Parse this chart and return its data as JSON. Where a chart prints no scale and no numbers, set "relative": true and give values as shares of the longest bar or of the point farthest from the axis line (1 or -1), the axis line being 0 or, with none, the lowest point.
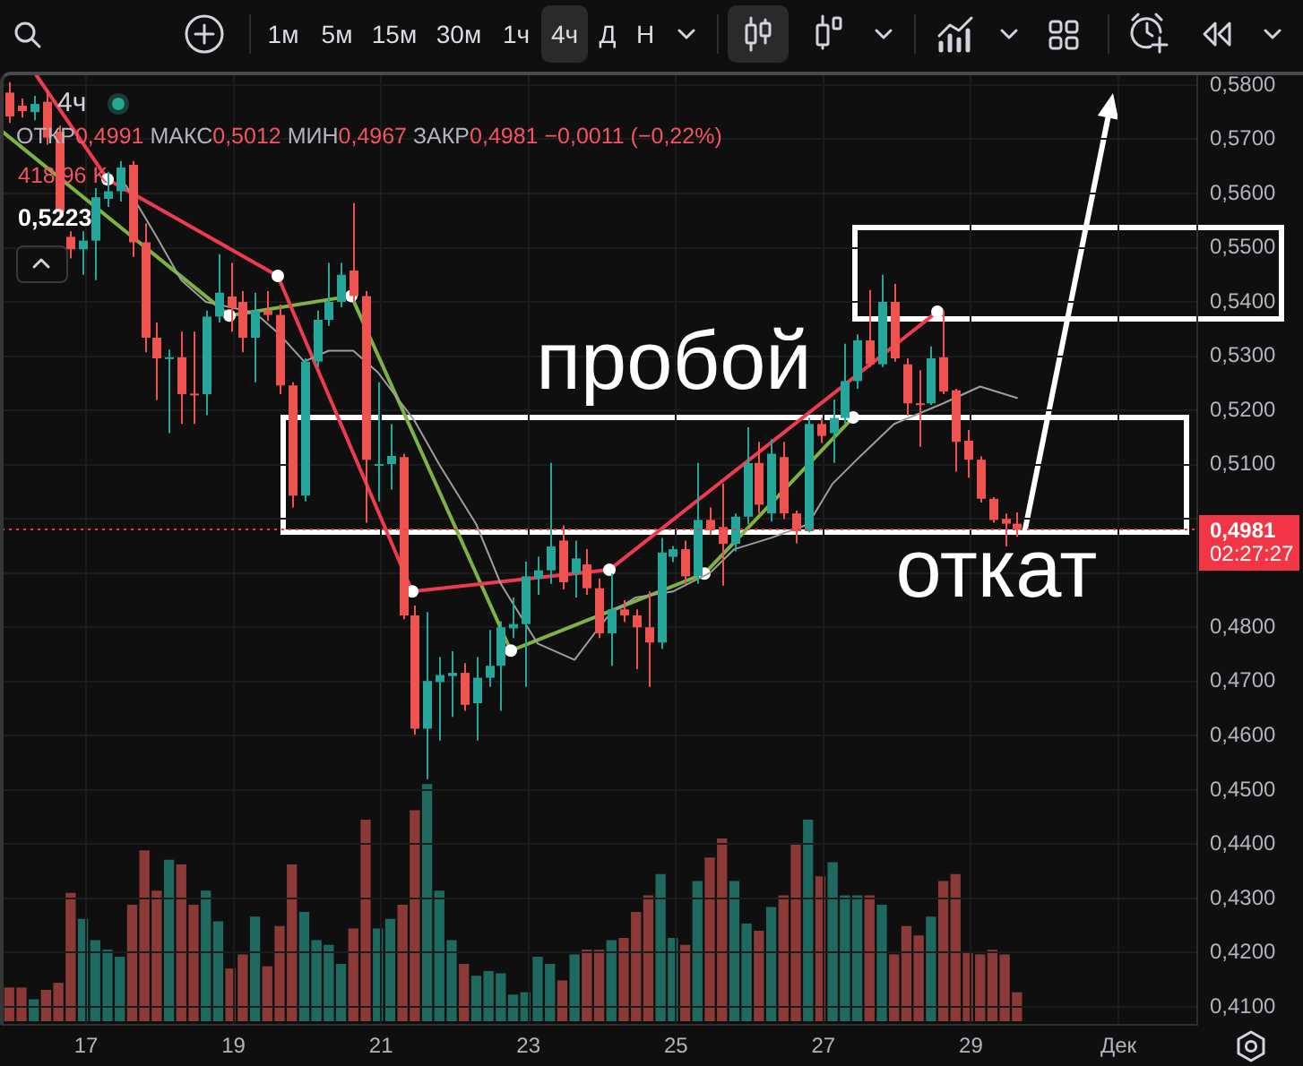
{
  "chart_data": [
    {
      "type": "candlestick",
      "title": "4ч",
      "subtitle": "ОТКР0,4991 МАКС0,5012 МИН0,4967 ЗАКР0,4981 −0,0011 (−0,22%)",
      "x": [
        "--11-15T23:00",
        "--11-16T03:00",
        "--11-16T07:00",
        "--11-16T11:00",
        "--11-16T15:00",
        "--11-16T19:00",
        "--11-16T23:00",
        "--11-17T03:00",
        "--11-17T07:00",
        "--11-17T11:00",
        "--11-17T15:00",
        "--11-17T19:00",
        "--11-17T23:00",
        "--11-18T03:00",
        "--11-18T07:00",
        "--11-18T11:00",
        "--11-18T15:00",
        "--11-18T19:00",
        "--11-18T23:00",
        "--11-19T03:00",
        "--11-19T07:00",
        "--11-19T11:00",
        "--11-19T15:00",
        "--11-19T19:00",
        "--11-19T23:00",
        "--11-20T03:00",
        "--11-20T07:00",
        "--11-20T11:00",
        "--11-20T15:00",
        "--11-20T19:00",
        "--11-20T23:00",
        "--11-21T03:00",
        "--11-21T07:00",
        "--11-21T11:00",
        "--11-21T15:00",
        "--11-21T19:00",
        "--11-21T23:00",
        "--11-22T03:00",
        "--11-22T07:00",
        "--11-22T11:00",
        "--11-22T15:00",
        "--11-22T19:00",
        "--11-22T23:00",
        "--11-23T03:00",
        "--11-23T07:00",
        "--11-23T11:00",
        "--11-23T15:00",
        "--11-23T19:00",
        "--11-23T23:00",
        "--11-24T03:00",
        "--11-24T07:00",
        "--11-24T11:00",
        "--11-24T15:00",
        "--11-24T19:00",
        "--11-24T23:00",
        "--11-25T03:00",
        "--11-25T07:00",
        "--11-25T11:00",
        "--11-25T15:00",
        "--11-25T19:00",
        "--11-25T23:00",
        "--11-26T03:00",
        "--11-26T07:00",
        "--11-26T11:00",
        "--11-26T15:00",
        "--11-26T19:00",
        "--11-26T23:00",
        "--11-27T03:00",
        "--11-27T07:00",
        "--11-27T11:00",
        "--11-27T15:00",
        "--11-27T19:00",
        "--11-27T23:00",
        "--11-28T03:00",
        "--11-28T07:00",
        "--11-28T11:00",
        "--11-28T15:00",
        "--11-28T19:00",
        "--11-28T23:00",
        "--11-29T03:00",
        "--11-29T07:00",
        "--11-29T11:00",
        "--11-29T15:00"
      ],
      "ohlc": [
        [
          0.5786,
          0.5805,
          0.573,
          0.5742
        ],
        [
          0.5762,
          0.5775,
          0.574,
          0.5752
        ],
        [
          0.575,
          0.578,
          0.5735,
          0.5765
        ],
        [
          0.5769,
          0.579,
          0.569,
          0.5703
        ],
        [
          0.5714,
          0.5725,
          0.555,
          0.5566
        ],
        [
          0.552,
          0.553,
          0.548,
          0.5497
        ],
        [
          0.5497,
          0.553,
          0.545,
          0.5513
        ],
        [
          0.5513,
          0.561,
          0.544,
          0.5593
        ],
        [
          0.559,
          0.564,
          0.5575,
          0.5604
        ],
        [
          0.5604,
          0.566,
          0.5585,
          0.5648
        ],
        [
          0.5653,
          0.566,
          0.5483,
          0.551
        ],
        [
          0.551,
          0.5545,
          0.5307,
          0.5334
        ],
        [
          0.5334,
          0.5362,
          0.5219,
          0.5296
        ],
        [
          0.5296,
          0.5312,
          0.5158,
          0.5298
        ],
        [
          0.5298,
          0.5345,
          0.5175,
          0.523
        ],
        [
          0.5231,
          0.5345,
          0.5175,
          0.523
        ],
        [
          0.523,
          0.5384,
          0.5191,
          0.5373
        ],
        [
          0.5373,
          0.5488,
          0.5362,
          0.5417
        ],
        [
          0.541,
          0.5472,
          0.5345,
          0.5389
        ],
        [
          0.54,
          0.542,
          0.5307,
          0.5334
        ],
        [
          0.5334,
          0.5417,
          0.5252,
          0.5384
        ],
        [
          0.5384,
          0.542,
          0.5365,
          0.5376
        ],
        [
          0.5376,
          0.5395,
          0.523,
          0.5246
        ],
        [
          0.5246,
          0.5252,
          0.5021,
          0.5043
        ],
        [
          0.5043,
          0.5296,
          0.5032,
          0.529
        ],
        [
          0.529,
          0.5384,
          0.528,
          0.5367
        ],
        [
          0.5367,
          0.5472,
          0.5356,
          0.54
        ],
        [
          0.54,
          0.5472,
          0.539,
          0.545
        ],
        [
          0.5458,
          0.5582,
          0.54,
          0.5411
        ],
        [
          0.5411,
          0.542,
          0.4993,
          0.5109
        ],
        [
          0.5098,
          0.5252,
          0.5032,
          0.5101
        ],
        [
          0.5101,
          0.5175,
          0.5054,
          0.5116
        ],
        [
          0.5114,
          0.512,
          0.4815,
          0.4822
        ],
        [
          0.4822,
          0.484,
          0.4602,
          0.4613
        ],
        [
          0.4613,
          0.4828,
          0.452,
          0.4701
        ],
        [
          0.4699,
          0.4745,
          0.4591,
          0.4712
        ],
        [
          0.471,
          0.4756,
          0.4635,
          0.4716
        ],
        [
          0.4716,
          0.4734,
          0.4646,
          0.4657
        ],
        [
          0.466,
          0.4745,
          0.4591,
          0.4707
        ],
        [
          0.4707,
          0.4795,
          0.469,
          0.4729
        ],
        [
          0.4729,
          0.4811,
          0.4646,
          0.48
        ],
        [
          0.4798,
          0.4855,
          0.478,
          0.4806
        ],
        [
          0.4806,
          0.4921,
          0.469,
          0.4894
        ],
        [
          0.489,
          0.493,
          0.486,
          0.4905
        ],
        [
          0.4905,
          0.5103,
          0.488,
          0.4949
        ],
        [
          0.496,
          0.4988,
          0.487,
          0.4883
        ],
        [
          0.4899,
          0.496,
          0.4855,
          0.4927
        ],
        [
          0.4916,
          0.4944,
          0.486,
          0.4872
        ],
        [
          0.4872,
          0.489,
          0.478,
          0.4789
        ],
        [
          0.4789,
          0.4899,
          0.4729,
          0.4833
        ],
        [
          0.4833,
          0.485,
          0.481,
          0.4822
        ],
        [
          0.4822,
          0.4833,
          0.4723,
          0.48
        ],
        [
          0.48,
          0.4866,
          0.469,
          0.4772
        ],
        [
          0.4772,
          0.4965,
          0.476,
          0.4938
        ],
        [
          0.493,
          0.495,
          0.492,
          0.4944
        ],
        [
          0.4944,
          0.496,
          0.488,
          0.4894
        ],
        [
          0.4894,
          0.5103,
          0.488,
          0.4998
        ],
        [
          0.4998,
          0.5021,
          0.497,
          0.4979
        ],
        [
          0.4985,
          0.5065,
          0.4877,
          0.4954
        ],
        [
          0.4954,
          0.501,
          0.494,
          0.5004
        ],
        [
          0.5004,
          0.5169,
          0.499,
          0.5103
        ],
        [
          0.5103,
          0.5142,
          0.501,
          0.5026
        ],
        [
          0.501,
          0.5147,
          0.4995,
          0.512
        ],
        [
          0.5114,
          0.5142,
          0.5,
          0.501
        ],
        [
          0.501,
          0.5015,
          0.4955,
          0.4977
        ],
        [
          0.4977,
          0.5186,
          0.4975,
          0.5175
        ],
        [
          0.5175,
          0.5186,
          0.514,
          0.5153
        ],
        [
          0.5158,
          0.522,
          0.5103,
          0.5186
        ],
        [
          0.5186,
          0.5323,
          0.5175,
          0.5254
        ],
        [
          0.5254,
          0.534,
          0.524,
          0.5329
        ],
        [
          0.5329,
          0.5422,
          0.528,
          0.5285
        ],
        [
          0.5285,
          0.545,
          0.528,
          0.54
        ],
        [
          0.54,
          0.5433,
          0.529,
          0.5296
        ],
        [
          0.5285,
          0.5296,
          0.519,
          0.5213
        ],
        [
          0.5213,
          0.5274,
          0.5133,
          0.5212
        ],
        [
          0.5213,
          0.5318,
          0.521,
          0.5296
        ],
        [
          0.5298,
          0.5384,
          0.523,
          0.5235
        ],
        [
          0.5237,
          0.524,
          0.5087,
          0.5142
        ],
        [
          0.5144,
          0.5164,
          0.5076,
          0.5109
        ],
        [
          0.5109,
          0.5115,
          0.503,
          0.5037
        ],
        [
          0.5037,
          0.504,
          0.4993,
          0.4998
        ],
        [
          0.5,
          0.501,
          0.4949,
          0.4991
        ],
        [
          0.4991,
          0.5012,
          0.4967,
          0.4981
        ]
      ],
      "colors": [
        "#ef5350",
        "#ef5350",
        "#26a69a",
        "#ef5350",
        "#ef5350",
        "#ef5350",
        "#26a69a",
        "#26a69a",
        "#26a69a",
        "#26a69a",
        "#ef5350",
        "#ef5350",
        "#ef5350",
        "#26a69a",
        "#ef5350",
        "#ef5350",
        "#26a69a",
        "#26a69a",
        "#ef5350",
        "#ef5350",
        "#26a69a",
        "#ef5350",
        "#ef5350",
        "#ef5350",
        "#26a69a",
        "#26a69a",
        "#26a69a",
        "#26a69a",
        "#ef5350",
        "#ef5350",
        "#26a69a",
        "#26a69a",
        "#ef5350",
        "#ef5350",
        "#26a69a",
        "#26a69a",
        "#26a69a",
        "#ef5350",
        "#26a69a",
        "#26a69a",
        "#26a69a",
        "#26a69a",
        "#26a69a",
        "#26a69a",
        "#26a69a",
        "#ef5350",
        "#26a69a",
        "#ef5350",
        "#ef5350",
        "#26a69a",
        "#ef5350",
        "#ef5350",
        "#ef5350",
        "#26a69a",
        "#26a69a",
        "#ef5350",
        "#26a69a",
        "#ef5350",
        "#ef5350",
        "#26a69a",
        "#26a69a",
        "#ef5350",
        "#26a69a",
        "#ef5350",
        "#ef5350",
        "#26a69a",
        "#ef5350",
        "#26a69a",
        "#26a69a",
        "#26a69a",
        "#ef5350",
        "#26a69a",
        "#ef5350",
        "#ef5350",
        "#ef5350",
        "#26a69a",
        "#ef5350",
        "#ef5350",
        "#ef5350",
        "#ef5350",
        "#ef5350",
        "#ef5350",
        "#ef5350"
      ],
      "series": [
        {
          "type": "line",
          "color": "#9e9e9e",
          "x": [
            "--11-17T13:00",
            "--11-17T23:00",
            "--11-18T07:00",
            "--11-18T15:00",
            "--11-18T23:00",
            "--11-19T07:00",
            "--11-19T15:00",
            "--11-19T23:00",
            "--11-20T07:00",
            "--11-20T15:00",
            "--11-20T23:00",
            "--11-21T11:00",
            "--11-21T19:00",
            "--11-22T07:00",
            "--11-22T15:00",
            "--11-23T03:00",
            "--11-23T15:00",
            "--11-23T23:00",
            "--11-24T03:00",
            "--11-24T11:00",
            "--11-24T23:00",
            "--11-25T11:00",
            "--11-25T19:00",
            "--11-26T07:00",
            "--11-26T19:00",
            "--11-27T03:00",
            "--11-27T11:00",
            "--11-27T23:00",
            "--11-28T15:00",
            "--11-29T03:00",
            "--11-29T15:00"
          ],
          "values": [
            0.5615,
            0.552,
            0.544,
            0.54,
            0.539,
            0.538,
            0.534,
            0.529,
            0.531,
            0.531,
            0.527,
            0.518,
            0.51,
            0.499,
            0.488,
            0.477,
            0.474,
            0.48,
            0.4828,
            0.4855,
            0.4866,
            0.49,
            0.4944,
            0.4965,
            0.499,
            0.5065,
            0.511,
            0.5175,
            0.5213,
            0.5244,
            0.5223
          ]
        },
        {
          "type": "line",
          "color": "#ef3b4f",
          "marker": "circle",
          "x": [
            "--11-16T07:50",
            "--11-17T07:00",
            "--11-19T14:25",
            "--11-21T10:10",
            "--11-24T02:20",
            "--11-28T13:05"
          ],
          "values": [
            0.5818,
            0.5626,
            0.5448,
            0.4866,
            0.4906,
            0.5382
          ]
        },
        {
          "type": "line",
          "color": "#7cb342",
          "marker": "circle",
          "x": [
            "--11-15T20:35",
            "--11-18T22:40",
            "--11-20T14:20",
            "--11-22T18:15",
            "--11-25T09:15",
            "--11-27T09:40"
          ],
          "values": [
            0.5715,
            0.5375,
            0.5411,
            0.4757,
            0.4899,
            0.5187
          ]
        }
      ],
      "xlim": [
        "--11-15T20:35",
        "--12-02T01:40"
      ],
      "xticks": [
        {
          "value": "--11-17",
          "label": "17"
        },
        {
          "value": "--11-19",
          "label": "19"
        },
        {
          "value": "--11-21",
          "label": "21"
        },
        {
          "value": "--11-23",
          "label": "23"
        },
        {
          "value": "--11-25",
          "label": "25"
        },
        {
          "value": "--11-27",
          "label": "27"
        },
        {
          "value": "--11-29",
          "label": "29"
        },
        {
          "value": "--12-01",
          "label": "Дек"
        }
      ],
      "ylim": [
        0.4067,
        0.5818
      ],
      "yticks": [
        {
          "value": 0.41,
          "label": "0,4100"
        },
        {
          "value": 0.42,
          "label": "0,4200"
        },
        {
          "value": 0.43,
          "label": "0,4300"
        },
        {
          "value": 0.44,
          "label": "0,4400"
        },
        {
          "value": 0.45,
          "label": "0,4500"
        },
        {
          "value": 0.46,
          "label": "0,4600"
        },
        {
          "value": 0.47,
          "label": "0,4700"
        },
        {
          "value": 0.48,
          "label": "0,4800"
        },
        {
          "value": 0.49,
          "label": null
        },
        {
          "value": 0.5,
          "label": null
        },
        {
          "value": 0.51,
          "label": "0,5100"
        },
        {
          "value": 0.52,
          "label": "0,5200"
        },
        {
          "value": 0.53,
          "label": "0,5300"
        },
        {
          "value": 0.54,
          "label": "0,5400"
        },
        {
          "value": 0.55,
          "label": "0,5500"
        },
        {
          "value": 0.56,
          "label": "0,5600"
        },
        {
          "value": 0.57,
          "label": "0,5700"
        },
        {
          "value": 0.58,
          "label": "0,5800"
        }
      ],
      "grid": true,
      "ref_lines": [
        {
          "axis": "y",
          "value": 0.4981,
          "label": "0,4981",
          "color": "#f23645",
          "line_style": "dotted"
        }
      ],
      "annotations": [
        "1м",
        "5м",
        "15м",
        "30м",
        "1ч",
        "4ч",
        "Д",
        "Н",
        "02:27:27",
        "0,5223",
        "пробой",
        "откат"
      ]
    },
    {
      "type": "bar",
      "relative": true,
      "x": [
        "--11-15T23:00",
        "--11-16T03:00",
        "--11-16T07:00",
        "--11-16T11:00",
        "--11-16T15:00",
        "--11-16T19:00",
        "--11-16T23:00",
        "--11-17T03:00",
        "--11-17T07:00",
        "--11-17T11:00",
        "--11-17T15:00",
        "--11-17T19:00",
        "--11-17T23:00",
        "--11-18T03:00",
        "--11-18T07:00",
        "--11-18T11:00",
        "--11-18T15:00",
        "--11-18T19:00",
        "--11-18T23:00",
        "--11-19T03:00",
        "--11-19T07:00",
        "--11-19T11:00",
        "--11-19T15:00",
        "--11-19T19:00",
        "--11-19T23:00",
        "--11-20T03:00",
        "--11-20T07:00",
        "--11-20T11:00",
        "--11-20T15:00",
        "--11-20T19:00",
        "--11-20T23:00",
        "--11-21T03:00",
        "--11-21T07:00",
        "--11-21T11:00",
        "--11-21T15:00",
        "--11-21T19:00",
        "--11-21T23:00",
        "--11-22T03:00",
        "--11-22T07:00",
        "--11-22T11:00",
        "--11-22T15:00",
        "--11-22T19:00",
        "--11-22T23:00",
        "--11-23T03:00",
        "--11-23T07:00",
        "--11-23T11:00",
        "--11-23T15:00",
        "--11-23T19:00",
        "--11-23T23:00",
        "--11-24T03:00",
        "--11-24T07:00",
        "--11-24T11:00",
        "--11-24T15:00",
        "--11-24T19:00",
        "--11-24T23:00",
        "--11-25T03:00",
        "--11-25T07:00",
        "--11-25T11:00",
        "--11-25T15:00",
        "--11-25T19:00",
        "--11-25T23:00",
        "--11-26T03:00",
        "--11-26T07:00",
        "--11-26T11:00",
        "--11-26T15:00",
        "--11-26T19:00",
        "--11-26T23:00",
        "--11-27T03:00",
        "--11-27T07:00",
        "--11-27T11:00",
        "--11-27T15:00",
        "--11-27T19:00",
        "--11-27T23:00",
        "--11-28T03:00",
        "--11-28T07:00",
        "--11-28T11:00",
        "--11-28T15:00",
        "--11-28T19:00",
        "--11-28T23:00",
        "--11-29T03:00",
        "--11-29T07:00",
        "--11-29T11:00",
        "--11-29T15:00"
      ],
      "values": [
        0.14,
        0.14,
        0.09,
        0.13,
        0.16,
        0.54,
        0.43,
        0.34,
        0.3,
        0.27,
        0.49,
        0.72,
        0.55,
        0.68,
        0.66,
        0.49,
        0.55,
        0.42,
        0.22,
        0.28,
        0.44,
        0.23,
        0.4,
        0.66,
        0.46,
        0.34,
        0.32,
        0.24,
        0.39,
        0.85,
        0.39,
        0.43,
        0.49,
        0.89,
        1,
        0.55,
        0.34,
        0.24,
        0.19,
        0.21,
        0.2,
        0.11,
        0.12,
        0.27,
        0.24,
        0.17,
        0.28,
        0.3,
        0.3,
        0.34,
        0.35,
        0.46,
        0.53,
        0.62,
        0.35,
        0.32,
        0.59,
        0.69,
        0.77,
        0.59,
        0.41,
        0.38,
        0.48,
        0.53,
        0.75,
        0.85,
        0.61,
        0.67,
        0.53,
        0.53,
        0.53,
        0.49,
        0.28,
        0.4,
        0.36,
        0.44,
        0.59,
        0.62,
        0.29,
        0.28,
        0.3,
        0.28,
        0.12
      ],
      "colors": [
        "#8b3a38",
        "#8b3a38",
        "#1f6a60",
        "#8b3a38",
        "#8b3a38",
        "#8b3a38",
        "#1f6a60",
        "#1f6a60",
        "#1f6a60",
        "#1f6a60",
        "#8b3a38",
        "#8b3a38",
        "#8b3a38",
        "#1f6a60",
        "#8b3a38",
        "#8b3a38",
        "#1f6a60",
        "#1f6a60",
        "#8b3a38",
        "#8b3a38",
        "#1f6a60",
        "#8b3a38",
        "#8b3a38",
        "#8b3a38",
        "#1f6a60",
        "#1f6a60",
        "#1f6a60",
        "#1f6a60",
        "#8b3a38",
        "#8b3a38",
        "#1f6a60",
        "#1f6a60",
        "#8b3a38",
        "#8b3a38",
        "#1f6a60",
        "#1f6a60",
        "#1f6a60",
        "#8b3a38",
        "#1f6a60",
        "#1f6a60",
        "#1f6a60",
        "#1f6a60",
        "#1f6a60",
        "#1f6a60",
        "#1f6a60",
        "#8b3a38",
        "#1f6a60",
        "#8b3a38",
        "#8b3a38",
        "#1f6a60",
        "#8b3a38",
        "#8b3a38",
        "#8b3a38",
        "#1f6a60",
        "#1f6a60",
        "#8b3a38",
        "#1f6a60",
        "#8b3a38",
        "#8b3a38",
        "#1f6a60",
        "#1f6a60",
        "#8b3a38",
        "#1f6a60",
        "#8b3a38",
        "#8b3a38",
        "#1f6a60",
        "#8b3a38",
        "#1f6a60",
        "#1f6a60",
        "#1f6a60",
        "#8b3a38",
        "#1f6a60",
        "#8b3a38",
        "#8b3a38",
        "#8b3a38",
        "#1f6a60",
        "#8b3a38",
        "#8b3a38",
        "#8b3a38",
        "#8b3a38",
        "#8b3a38",
        "#8b3a38",
        "#8b3a38"
      ],
      "xlim": [
        "--11-15T20:35",
        "--12-02T01:40"
      ],
      "tick_labels": false,
      "annotations": [
        "418,96 K"
      ]
    }
  ]
}
